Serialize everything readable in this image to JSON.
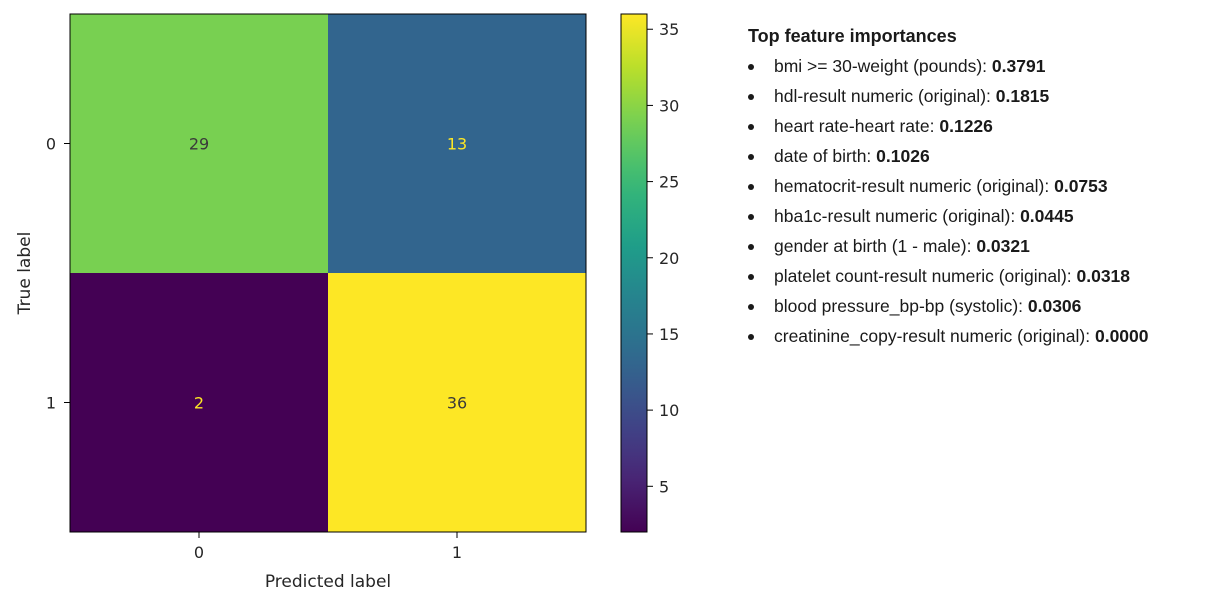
{
  "chart_data": {
    "type": "heatmap",
    "title": "",
    "xlabel": "Predicted label",
    "ylabel": "True label",
    "x_ticks": [
      "0",
      "1"
    ],
    "y_ticks": [
      "0",
      "1"
    ],
    "values": [
      [
        29,
        13
      ],
      [
        2,
        36
      ]
    ],
    "colormap": "viridis",
    "colorbar": {
      "min": 2,
      "max": 36,
      "ticks": [
        5,
        10,
        15,
        20,
        25,
        30,
        35
      ]
    }
  },
  "importances": {
    "title": "Top feature importances",
    "items": [
      {
        "name": "bmi >= 30-weight (pounds): ",
        "value": "0.3791"
      },
      {
        "name": "hdl-result numeric (original): ",
        "value": "0.1815"
      },
      {
        "name": "heart rate-heart rate: ",
        "value": "0.1226"
      },
      {
        "name": "date of birth: ",
        "value": "0.1026"
      },
      {
        "name": "hematocrit-result numeric (original): ",
        "value": "0.0753"
      },
      {
        "name": "hba1c-result numeric (original): ",
        "value": "0.0445"
      },
      {
        "name": "gender at birth (1 - male): ",
        "value": "0.0321"
      },
      {
        "name": "platelet count-result numeric (original): ",
        "value": "0.0318"
      },
      {
        "name": "blood pressure_bp-bp (systolic): ",
        "value": "0.0306"
      },
      {
        "name": "creatinine_copy-result numeric (original): ",
        "value": "0.0000"
      }
    ]
  }
}
